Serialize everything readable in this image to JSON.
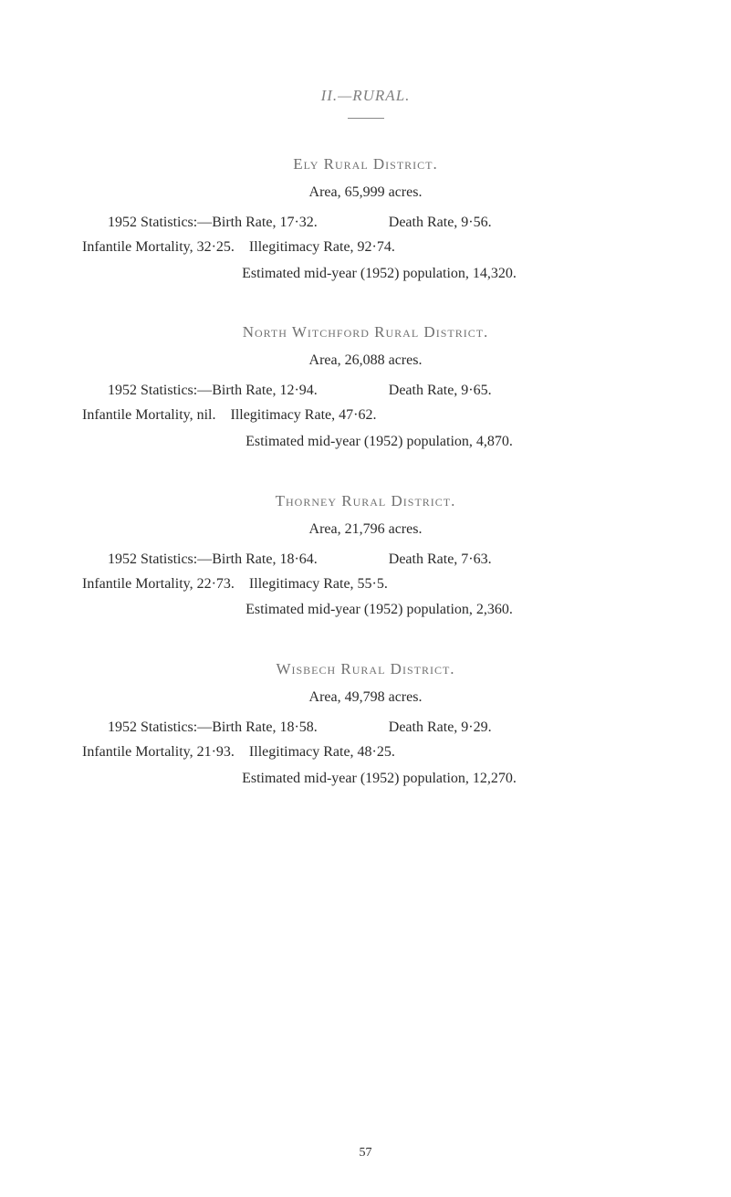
{
  "header": "II.—RURAL.",
  "districts": [
    {
      "title": "Ely Rural District.",
      "area": "Area, 65,999 acres.",
      "stats1": "1952 Statistics:—Birth Rate, 17·32.",
      "death": "Death Rate, 9·56.",
      "gap1": "78px",
      "stats2": "Infantile Mortality, 32·25. Illegitimacy Rate, 92·74.",
      "estimated": "Estimated mid-year (1952) population, 14,320."
    },
    {
      "title": "North Witchford Rural District.",
      "area": "Area, 26,088 acres.",
      "stats1": "1952 Statistics:—Birth Rate, 12·94.",
      "death": "Death Rate, 9·65.",
      "gap1": "78px",
      "stats2": "Infantile Mortality, nil. Illegitimacy Rate, 47·62.",
      "estimated": "Estimated mid-year (1952) population, 4,870."
    },
    {
      "title": "Thorney Rural District.",
      "area": "Area, 21,796 acres.",
      "stats1": "1952 Statistics:—Birth Rate, 18·64.",
      "death": "Death Rate, 7·63.",
      "gap1": "78px",
      "stats2": "Infantile Mortality, 22·73. Illegitimacy Rate, 55·5.",
      "estimated": "Estimated mid-year (1952) population, 2,360."
    },
    {
      "title": "Wisbech Rural District.",
      "area": "Area, 49,798 acres.",
      "stats1": "1952 Statistics:—Birth Rate, 18·58.",
      "death": "Death Rate, 9·29.",
      "gap1": "78px",
      "stats2": "Infantile Mortality, 21·93. Illegitimacy Rate, 48·25.",
      "estimated": "Estimated mid-year (1952) population, 12,270."
    }
  ],
  "pageNum": "57"
}
